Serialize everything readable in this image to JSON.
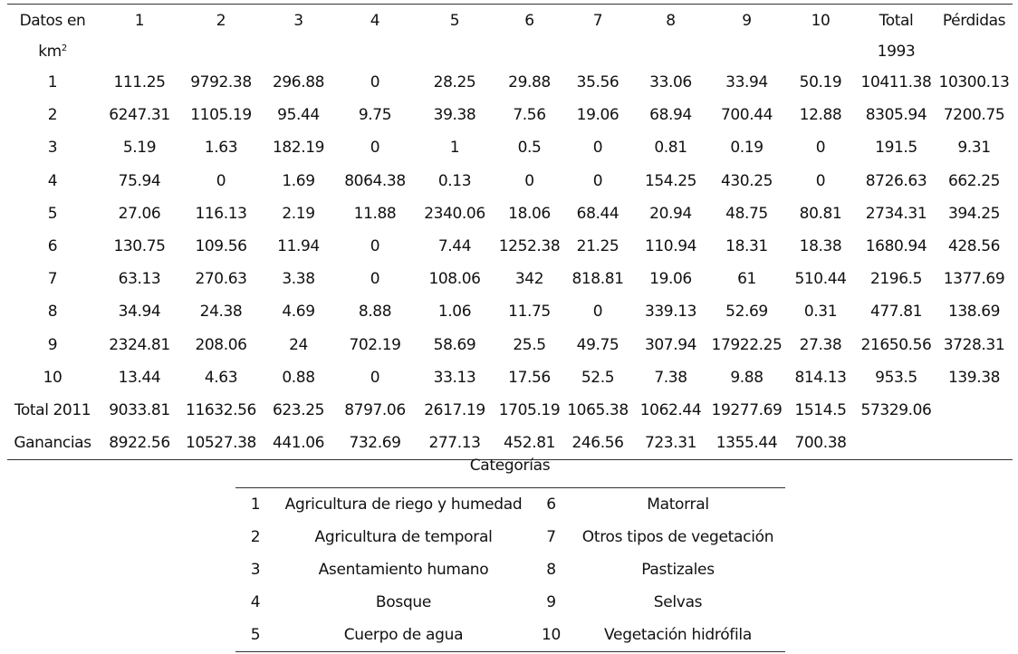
{
  "matrix": {
    "corner_line1": "Datos en",
    "corner_line2": "km",
    "corner_sup": "2",
    "col_numbers": [
      "1",
      "2",
      "3",
      "4",
      "5",
      "6",
      "7",
      "8",
      "9",
      "10"
    ],
    "total_label_line1": "Total",
    "total_label_line2": "1993",
    "losses_label": "Pérdidas",
    "rows": [
      {
        "label": "1",
        "cells": [
          "111.25",
          "9792.38",
          "296.88",
          "0",
          "28.25",
          "29.88",
          "35.56",
          "33.06",
          "33.94",
          "50.19",
          "10411.38",
          "10300.13"
        ]
      },
      {
        "label": "2",
        "cells": [
          "6247.31",
          "1105.19",
          "95.44",
          "9.75",
          "39.38",
          "7.56",
          "19.06",
          "68.94",
          "700.44",
          "12.88",
          "8305.94",
          "7200.75"
        ]
      },
      {
        "label": "3",
        "cells": [
          "5.19",
          "1.63",
          "182.19",
          "0",
          "1",
          "0.5",
          "0",
          "0.81",
          "0.19",
          "0",
          "191.5",
          "9.31"
        ]
      },
      {
        "label": "4",
        "cells": [
          "75.94",
          "0",
          "1.69",
          "8064.38",
          "0.13",
          "0",
          "0",
          "154.25",
          "430.25",
          "0",
          "8726.63",
          "662.25"
        ]
      },
      {
        "label": "5",
        "cells": [
          "27.06",
          "116.13",
          "2.19",
          "11.88",
          "2340.06",
          "18.06",
          "68.44",
          "20.94",
          "48.75",
          "80.81",
          "2734.31",
          "394.25"
        ]
      },
      {
        "label": "6",
        "cells": [
          "130.75",
          "109.56",
          "11.94",
          "0",
          "7.44",
          "1252.38",
          "21.25",
          "110.94",
          "18.31",
          "18.38",
          "1680.94",
          "428.56"
        ]
      },
      {
        "label": "7",
        "cells": [
          "63.13",
          "270.63",
          "3.38",
          "0",
          "108.06",
          "342",
          "818.81",
          "19.06",
          "61",
          "510.44",
          "2196.5",
          "1377.69"
        ]
      },
      {
        "label": "8",
        "cells": [
          "34.94",
          "24.38",
          "4.69",
          "8.88",
          "1.06",
          "11.75",
          "0",
          "339.13",
          "52.69",
          "0.31",
          "477.81",
          "138.69"
        ]
      },
      {
        "label": "9",
        "cells": [
          "2324.81",
          "208.06",
          "24",
          "702.19",
          "58.69",
          "25.5",
          "49.75",
          "307.94",
          "17922.25",
          "27.38",
          "21650.56",
          "3728.31"
        ]
      },
      {
        "label": "10",
        "cells": [
          "13.44",
          "4.63",
          "0.88",
          "0",
          "33.13",
          "17.56",
          "52.5",
          "7.38",
          "9.88",
          "814.13",
          "953.5",
          "139.38"
        ]
      },
      {
        "label": "Total 2011",
        "cells": [
          "9033.81",
          "11632.56",
          "623.25",
          "8797.06",
          "2617.19",
          "1705.19",
          "1065.38",
          "1062.44",
          "19277.69",
          "1514.5",
          "57329.06",
          ""
        ]
      },
      {
        "label": "Ganancias",
        "cells": [
          "8922.56",
          "10527.38",
          "441.06",
          "732.69",
          "277.13",
          "452.81",
          "246.56",
          "723.31",
          "1355.44",
          "700.38",
          "",
          ""
        ]
      }
    ]
  },
  "legend": {
    "title": "Categorías",
    "rows": [
      {
        "n1": "1",
        "c1": "Agricultura de riego y humedad",
        "n2": "6",
        "c2": "Matorral"
      },
      {
        "n1": "2",
        "c1": "Agricultura de temporal",
        "n2": "7",
        "c2": "Otros tipos de vegetación"
      },
      {
        "n1": "3",
        "c1": "Asentamiento humano",
        "n2": "8",
        "c2": "Pastizales"
      },
      {
        "n1": "4",
        "c1": "Bosque",
        "n2": "9",
        "c2": "Selvas"
      },
      {
        "n1": "5",
        "c1": "Cuerpo de agua",
        "n2": "10",
        "c2": "Vegetación hidrófila"
      }
    ]
  }
}
